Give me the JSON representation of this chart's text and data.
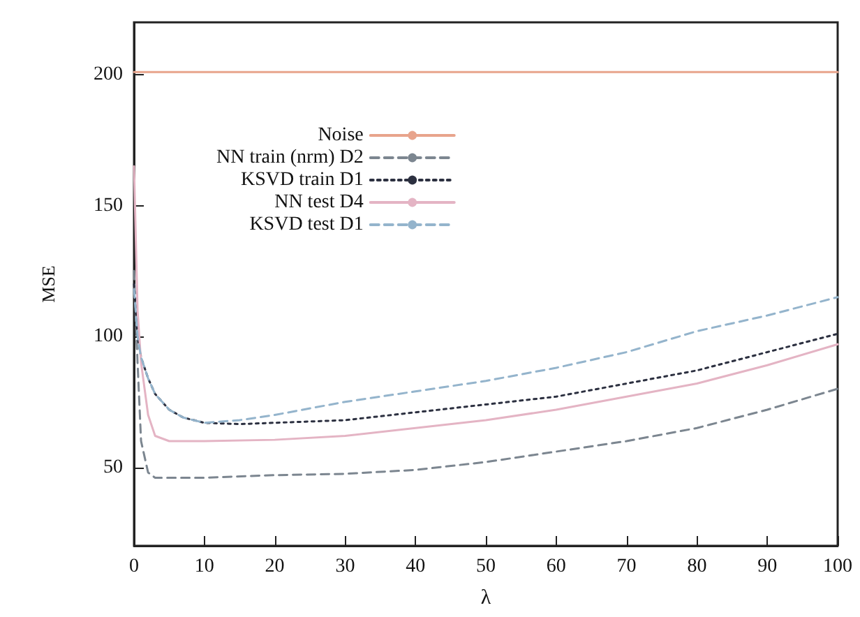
{
  "chart_data": {
    "type": "line",
    "xlabel": "λ",
    "ylabel": "MSE",
    "xlim": [
      0,
      100
    ],
    "xticks": [
      0,
      10,
      20,
      30,
      40,
      50,
      60,
      70,
      80,
      90,
      100
    ],
    "ylim": [
      20,
      220
    ],
    "yticks": [
      50,
      100,
      150,
      200
    ],
    "grid": false,
    "legend": "top",
    "marker": "none",
    "series": [
      {
        "name": "Noise",
        "color": "#e8a48c",
        "line_style": "solid",
        "x": [
          0,
          100
        ],
        "values": [
          201,
          201
        ]
      },
      {
        "name": "NN train (nrm) D2",
        "color": "#7c8690",
        "line_style": "dashed",
        "x": [
          0,
          0.5,
          1,
          2,
          3,
          5,
          10,
          20,
          30,
          40,
          50,
          60,
          70,
          80,
          90,
          100
        ],
        "values": [
          125,
          90,
          60,
          48,
          46,
          46,
          46,
          47,
          47.5,
          49,
          52,
          56,
          60,
          65,
          72,
          80
        ]
      },
      {
        "name": "KSVD train D1",
        "color": "#2c3040",
        "line_style": "dotted",
        "x": [
          0,
          0.5,
          1,
          2,
          3,
          5,
          7,
          10,
          15,
          20,
          30,
          40,
          50,
          60,
          70,
          80,
          90,
          100
        ],
        "values": [
          120,
          100,
          92,
          84,
          78,
          72,
          69,
          67,
          66.5,
          67,
          68,
          71,
          74,
          77,
          82,
          87,
          94,
          101
        ]
      },
      {
        "name": "NN test D4",
        "color": "#e4b4c4",
        "line_style": "solid",
        "x": [
          0,
          0.5,
          1,
          2,
          3,
          5,
          10,
          20,
          30,
          40,
          50,
          60,
          70,
          80,
          90,
          100
        ],
        "values": [
          165,
          110,
          90,
          70,
          62,
          60,
          60,
          60.5,
          62,
          65,
          68,
          72,
          77,
          82,
          89,
          97
        ]
      },
      {
        "name": "KSVD test D1",
        "color": "#94b4cc",
        "line_style": "dashed",
        "x": [
          0,
          0.5,
          1,
          2,
          3,
          5,
          7,
          10,
          15,
          20,
          30,
          40,
          50,
          60,
          70,
          80,
          90,
          100
        ],
        "values": [
          118,
          100,
          92,
          84,
          78,
          72,
          69,
          67,
          68,
          70,
          75,
          79,
          83,
          88,
          94,
          102,
          108,
          115
        ]
      }
    ]
  }
}
